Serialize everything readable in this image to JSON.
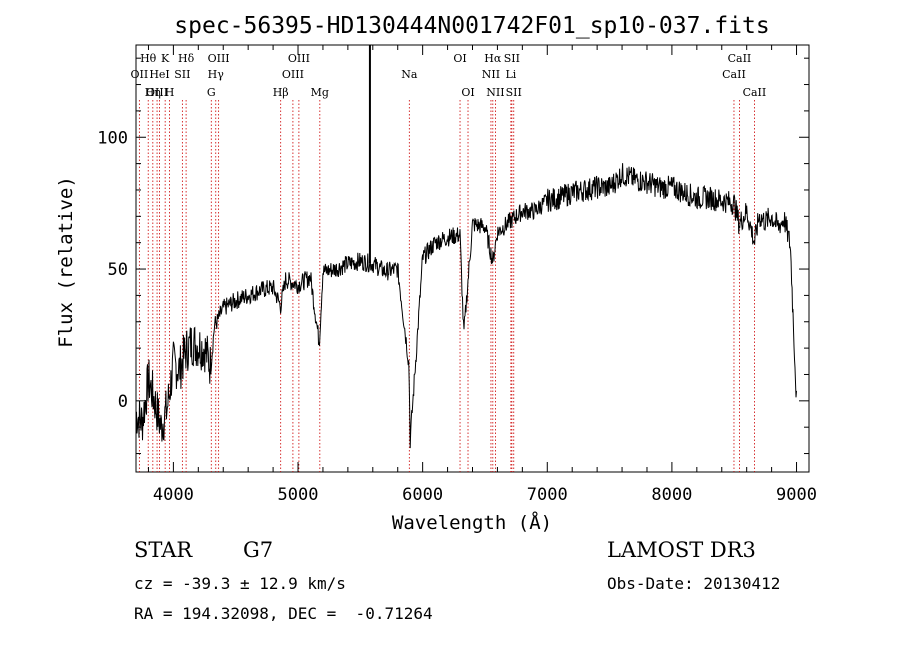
{
  "chart_data": {
    "type": "line",
    "title": "spec-56395-HD130444N001742F01_sp10-037.fits",
    "xlabel": "Wavelength (Å)",
    "ylabel": "Flux (relative)",
    "xlim": [
      3700,
      9100
    ],
    "ylim": [
      -27,
      135
    ],
    "x_ticks": [
      4000,
      5000,
      6000,
      7000,
      8000,
      9000
    ],
    "y_ticks": [
      0,
      50,
      100
    ],
    "x_tick_labels": [
      "4000",
      "5000",
      "6000",
      "7000",
      "8000",
      "9000"
    ],
    "y_tick_labels": [
      "0",
      "50",
      "100"
    ],
    "series": [
      {
        "name": "flux",
        "x": [
          3700,
          3750,
          3800,
          3850,
          3900,
          3950,
          4000,
          4050,
          4100,
          4150,
          4200,
          4250,
          4300,
          4330,
          4350,
          4400,
          4500,
          4600,
          4700,
          4800,
          4860,
          4900,
          5000,
          5100,
          5170,
          5200,
          5300,
          5400,
          5500,
          5600,
          5700,
          5800,
          5890,
          5900,
          6000,
          6100,
          6200,
          6300,
          6330,
          6400,
          6500,
          6563,
          6600,
          6700,
          6800,
          6900,
          7000,
          7100,
          7200,
          7300,
          7400,
          7500,
          7600,
          7700,
          7800,
          7900,
          8000,
          8100,
          8200,
          8300,
          8400,
          8500,
          8540,
          8600,
          8662,
          8700,
          8750,
          8800,
          8850,
          8900,
          8950,
          9000
        ],
        "values": [
          -5,
          -8,
          8,
          0,
          -10,
          -3,
          14,
          12,
          19,
          22,
          21,
          20,
          13,
          29,
          30,
          35,
          38,
          40,
          42,
          43,
          36,
          46,
          44,
          47,
          22,
          49,
          50,
          52,
          53,
          52,
          49,
          50,
          14,
          -15,
          54,
          60,
          62,
          63,
          25,
          67,
          66,
          53,
          64,
          68,
          72,
          72,
          76,
          77,
          79,
          80,
          81,
          81,
          86,
          84,
          83,
          81,
          81,
          79,
          77,
          77,
          76,
          75,
          67,
          72,
          60,
          70,
          68,
          70,
          66,
          69,
          59,
          0
        ]
      }
    ],
    "line_markers": [
      {
        "label": "Hθ",
        "x": 3798,
        "row": 1
      },
      {
        "label": "OII",
        "x": 3727,
        "row": 2
      },
      {
        "label": "OIII",
        "x": 3869,
        "row": 3
      },
      {
        "label": "K",
        "x": 3934,
        "row": 1
      },
      {
        "label": "HeI",
        "x": 3889,
        "row": 2
      },
      {
        "label": "Hη",
        "x": 3835,
        "row": 3
      },
      {
        "label": "Hδ",
        "x": 4102,
        "row": 1
      },
      {
        "label": "SII",
        "x": 4072,
        "row": 2
      },
      {
        "label": "H",
        "x": 3969,
        "row": 3
      },
      {
        "label": "OIII",
        "x": 4363,
        "row": 1
      },
      {
        "label": "Hγ",
        "x": 4340,
        "row": 2
      },
      {
        "label": "G",
        "x": 4304,
        "row": 3
      },
      {
        "label": "OIII",
        "x": 5007,
        "row": 1
      },
      {
        "label": "OIII",
        "x": 4959,
        "row": 2
      },
      {
        "label": "Hβ",
        "x": 4861,
        "row": 3
      },
      {
        "label": "Mg",
        "x": 5175,
        "row": 3
      },
      {
        "label": "Na",
        "x": 5893,
        "row": 2
      },
      {
        "label": "OI",
        "x": 6300,
        "row": 1
      },
      {
        "label": "OI",
        "x": 6364,
        "row": 3
      },
      {
        "label": "Hα",
        "x": 6563,
        "row": 1
      },
      {
        "label": "NII",
        "x": 6548,
        "row": 2
      },
      {
        "label": "NII",
        "x": 6584,
        "row": 3
      },
      {
        "label": "SII",
        "x": 6716,
        "row": 1
      },
      {
        "label": "Li",
        "x": 6708,
        "row": 2
      },
      {
        "label": "SII",
        "x": 6731,
        "row": 3
      },
      {
        "label": "CaII",
        "x": 8542,
        "row": 1
      },
      {
        "label": "CaII",
        "x": 8498,
        "row": 2
      },
      {
        "label": "CaII",
        "x": 8662,
        "row": 3
      }
    ],
    "vertical_line_x": 5577,
    "line_color": "#000000",
    "marker_color": "#cc0000"
  },
  "info": {
    "object_class": "STAR",
    "subclass": "G7",
    "survey": "LAMOST DR3",
    "cz": "cz = -39.3 ± 12.9 km/s",
    "obs_date": "Obs-Date: 20130412",
    "coords": "RA = 194.32098, DEC =  -0.71264"
  }
}
